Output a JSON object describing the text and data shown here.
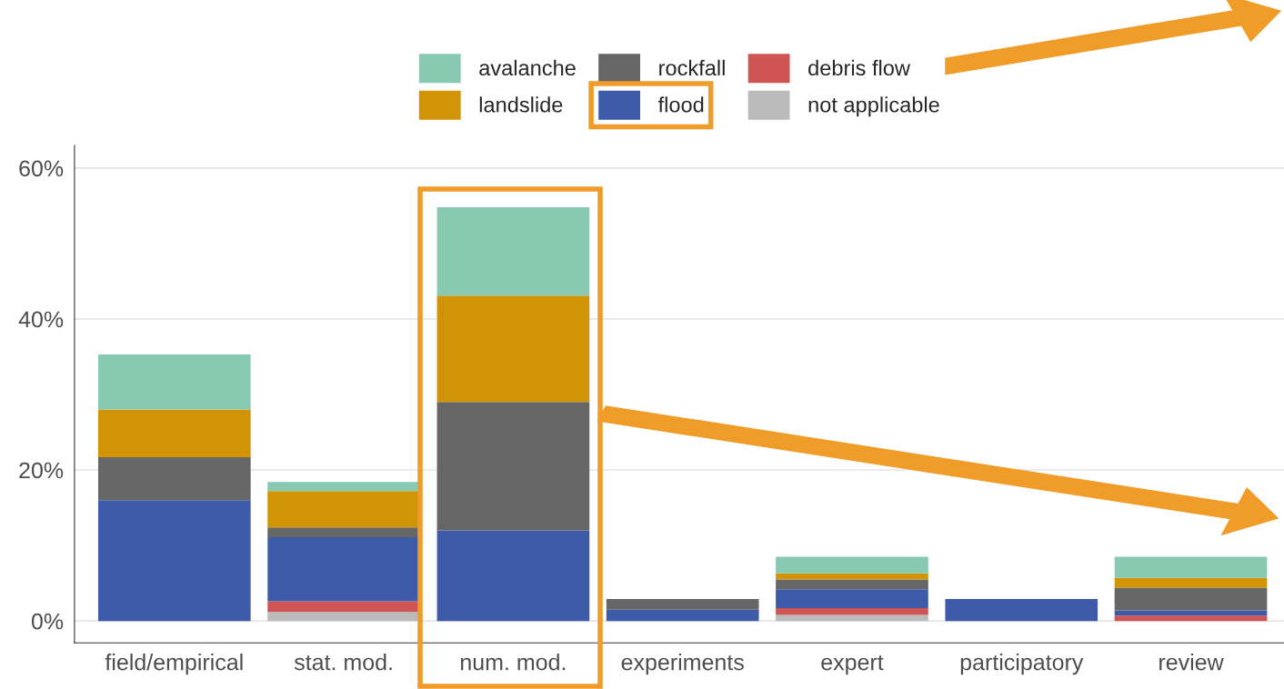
{
  "chart_data": {
    "type": "bar",
    "stacked": true,
    "categories": [
      "field/empirical",
      "stat. mod.",
      "num. mod.",
      "experiments",
      "expert",
      "participatory",
      "review"
    ],
    "series": [
      {
        "name": "not applicable",
        "color": "#bbbbbb",
        "values": [
          0,
          1.2,
          0,
          0,
          0.8,
          0,
          0
        ]
      },
      {
        "name": "debris flow",
        "color": "#cf5555",
        "values": [
          0,
          1.4,
          0,
          0,
          0.9,
          0,
          0.7
        ]
      },
      {
        "name": "flood",
        "color": "#3d5ba8",
        "values": [
          16.0,
          8.5,
          12.0,
          1.5,
          2.5,
          2.9,
          0.7
        ]
      },
      {
        "name": "rockfall",
        "color": "#666666",
        "values": [
          5.7,
          1.3,
          17.0,
          1.4,
          1.3,
          0,
          3.0
        ]
      },
      {
        "name": "landslide",
        "color": "#d09406",
        "values": [
          6.3,
          4.8,
          14.1,
          0,
          0.8,
          0,
          1.3
        ]
      },
      {
        "name": "avalanche",
        "color": "#88c9b2",
        "values": [
          7.3,
          1.2,
          11.7,
          0,
          2.2,
          0,
          2.8
        ]
      }
    ],
    "ylim": [
      -2.9,
      63
    ],
    "yticks": [
      {
        "value": 0,
        "label": "0%"
      },
      {
        "value": 20,
        "label": "20%"
      },
      {
        "value": 40,
        "label": "40%"
      },
      {
        "value": 60,
        "label": "60%"
      }
    ],
    "grid": "y",
    "legend": "top"
  }
}
